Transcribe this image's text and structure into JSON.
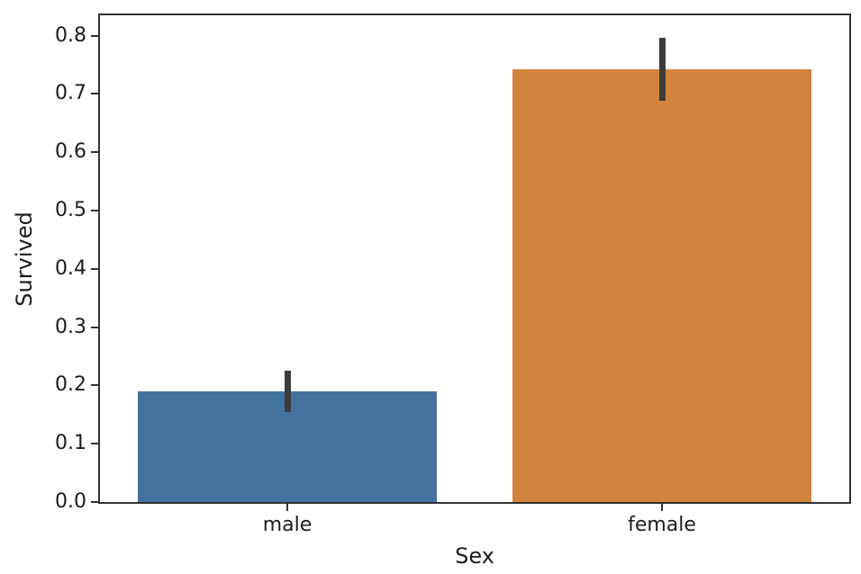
{
  "figure": {
    "background_color": "#ffffff"
  },
  "chart_data": {
    "type": "bar",
    "title": "",
    "xlabel": "Sex",
    "ylabel": "Survived",
    "categories": [
      "male",
      "female"
    ],
    "values": [
      0.19,
      0.743
    ],
    "series": [
      {
        "name": "Survived",
        "values": [
          0.19,
          0.743
        ],
        "error_low": [
          0.155,
          0.688
        ],
        "error_high": [
          0.225,
          0.796
        ]
      }
    ],
    "bar_colors": [
      "#45719e",
      "#d2843e"
    ],
    "error_bar_color": "#3b3b3b",
    "bar_width_fraction": 0.8,
    "ylim": [
      0,
      0.835
    ],
    "yticks": [
      0.0,
      0.1,
      0.2,
      0.3,
      0.4,
      0.5,
      0.6,
      0.7,
      0.8
    ],
    "ytick_labels": [
      "0.0",
      "0.1",
      "0.2",
      "0.3",
      "0.4",
      "0.5",
      "0.6",
      "0.7",
      "0.8"
    ],
    "grid": false,
    "legend": "none",
    "spine_color": "#333333",
    "tick_label_color": "#1c1c1c"
  }
}
